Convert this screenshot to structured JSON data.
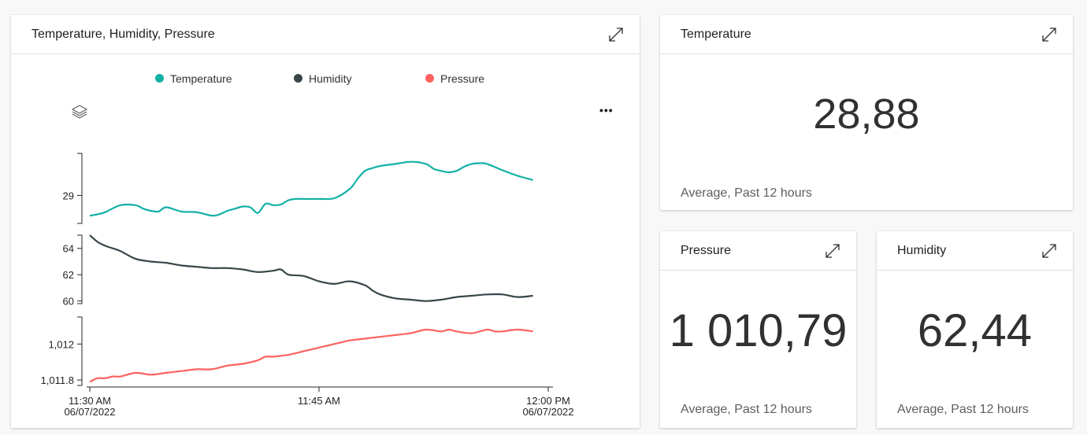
{
  "main_chart": {
    "title": "Temperature, Humidity, Pressure",
    "more_label": "•••"
  },
  "kpis": {
    "temperature": {
      "title": "Temperature",
      "value": "28,88",
      "caption": "Average, Past 12 hours"
    },
    "pressure": {
      "title": "Pressure",
      "value": "1 010,79",
      "caption": "Average, Past 12 hours"
    },
    "humidity": {
      "title": "Humidity",
      "value": "62,44",
      "caption": "Average, Past 12 hours"
    }
  },
  "colors": {
    "temperature": "#13b0a5",
    "humidity": "#374649",
    "pressure": "#fd625e"
  },
  "chart_data": {
    "type": "line",
    "legend": [
      "Temperature",
      "Humidity",
      "Pressure"
    ],
    "x_tick_labels": [
      {
        "time": "11:30 AM",
        "date": "06/07/2022"
      },
      {
        "time": "11:45 AM",
        "date": ""
      },
      {
        "time": "12:00 PM",
        "date": "06/07/2022"
      }
    ],
    "x_range_minutes": [
      0,
      30
    ],
    "panels": [
      {
        "name": "Temperature",
        "ylim": [
          28.6,
          29.6
        ],
        "y_ticks": [
          29
        ],
        "y_tick_labels": [
          "29"
        ],
        "x": [
          0,
          0.5,
          1,
          2,
          3,
          3.5,
          4,
          4.5,
          5,
          6,
          7,
          8,
          8.5,
          9,
          9.5,
          10,
          10.5,
          11,
          11.5,
          12,
          12.5,
          13,
          13.5,
          14,
          15,
          16,
          17,
          17.5,
          18,
          18.5,
          19,
          20,
          21,
          22,
          22.5,
          23,
          23.5,
          24,
          24.5,
          25,
          25.5,
          26,
          27,
          28,
          29
        ],
        "values": [
          28.71,
          28.73,
          28.76,
          28.86,
          28.86,
          28.81,
          28.78,
          28.77,
          28.83,
          28.77,
          28.76,
          28.71,
          28.73,
          28.78,
          28.81,
          28.84,
          28.83,
          28.75,
          28.88,
          28.86,
          28.87,
          28.93,
          28.95,
          28.95,
          28.95,
          28.96,
          29.09,
          29.23,
          29.35,
          29.39,
          29.42,
          29.45,
          29.48,
          29.45,
          29.38,
          29.35,
          29.33,
          29.35,
          29.41,
          29.45,
          29.46,
          29.45,
          29.36,
          29.28,
          29.22
        ]
      },
      {
        "name": "Humidity",
        "ylim": [
          59.8,
          65.0
        ],
        "y_ticks": [
          60,
          62,
          64
        ],
        "y_tick_labels": [
          "60",
          "62",
          "64"
        ],
        "x": [
          0,
          0.5,
          1,
          1.5,
          2,
          3,
          4,
          5,
          6,
          7,
          8,
          9,
          10,
          11,
          12,
          12.5,
          13,
          14,
          15,
          16,
          17,
          18,
          18.5,
          19,
          20,
          21,
          22,
          23,
          24,
          25,
          26,
          27,
          28,
          29
        ],
        "values": [
          65.0,
          64.5,
          64.2,
          64.0,
          63.8,
          63.2,
          63.0,
          62.9,
          62.7,
          62.6,
          62.5,
          62.5,
          62.4,
          62.2,
          62.3,
          62.4,
          62.0,
          61.9,
          61.5,
          61.3,
          61.5,
          61.2,
          60.8,
          60.5,
          60.2,
          60.1,
          60.0,
          60.1,
          60.3,
          60.4,
          60.5,
          60.5,
          60.3,
          60.4
        ]
      },
      {
        "name": "Pressure",
        "ylim": [
          1011.77,
          1012.15
        ],
        "y_ticks": [
          1011.8,
          1012
        ],
        "y_tick_labels": [
          "1,011.8",
          "1,012"
        ],
        "x": [
          0,
          0.5,
          1,
          1.5,
          2,
          3,
          4,
          5,
          6,
          7,
          8,
          9,
          10,
          11,
          11.5,
          12,
          13,
          14,
          14.5,
          15,
          15.5,
          16,
          16.5,
          17,
          18,
          19,
          20,
          21,
          22,
          23,
          23.5,
          24,
          25,
          26,
          26.5,
          27,
          28,
          29
        ],
        "values": [
          1011.79,
          1011.81,
          1011.81,
          1011.82,
          1011.82,
          1011.84,
          1011.83,
          1011.84,
          1011.85,
          1011.86,
          1011.86,
          1011.88,
          1011.89,
          1011.91,
          1011.93,
          1011.93,
          1011.94,
          1011.96,
          1011.97,
          1011.98,
          1011.99,
          1012.0,
          1012.01,
          1012.02,
          1012.03,
          1012.04,
          1012.05,
          1012.06,
          1012.08,
          1012.07,
          1012.08,
          1012.07,
          1012.06,
          1012.08,
          1012.07,
          1012.07,
          1012.08,
          1012.07
        ]
      }
    ]
  }
}
